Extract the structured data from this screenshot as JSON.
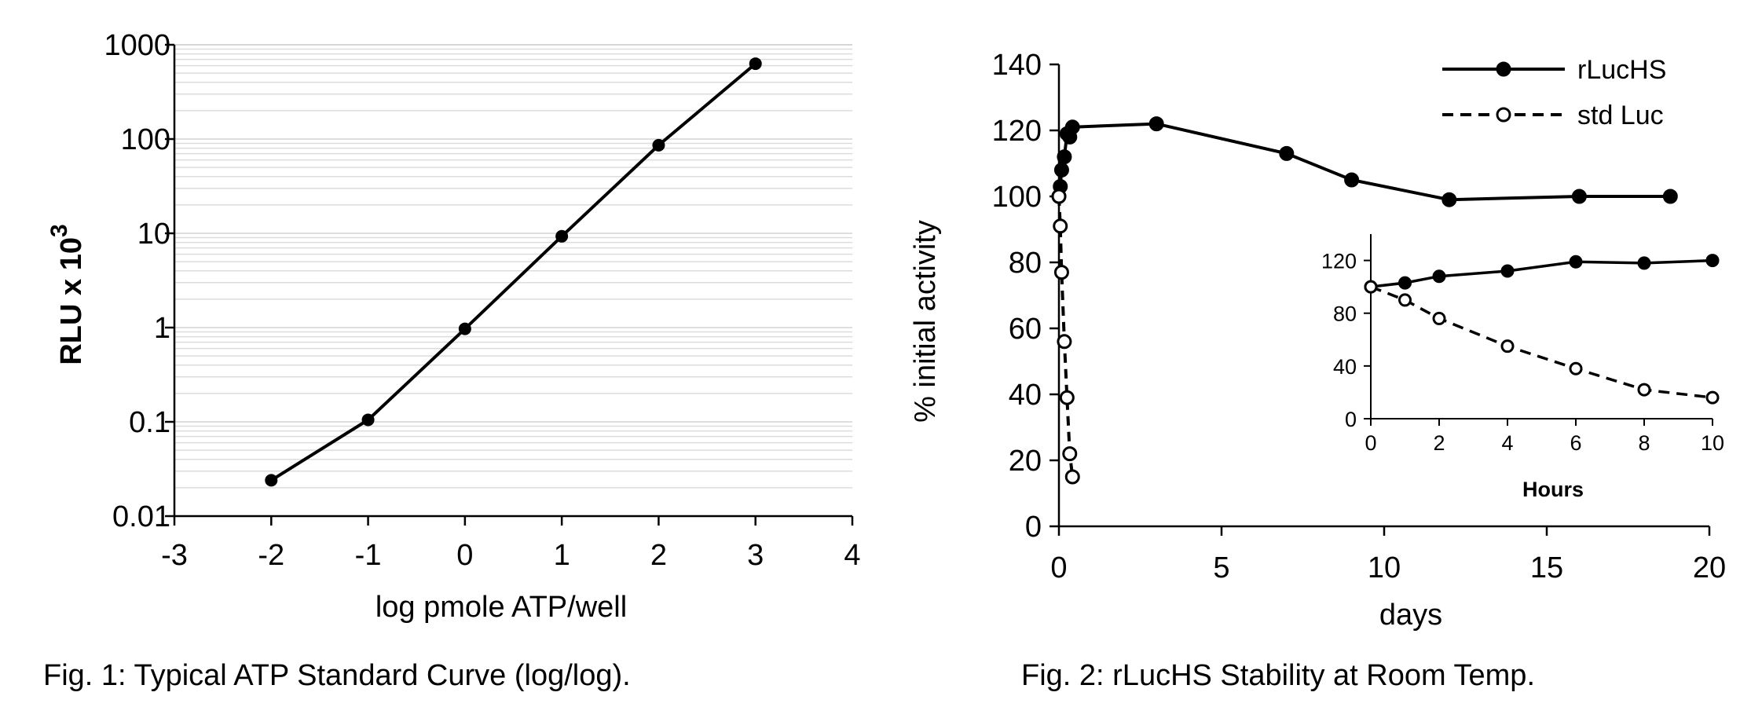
{
  "chart_data": [
    {
      "type": "line",
      "caption": "Fig. 1: Typical ATP Standard Curve (log/log).",
      "xlabel": "log pmole ATP/well",
      "ylabel": "RLU x 10",
      "ylabel_superscript": "3",
      "xlim": [
        -3,
        4
      ],
      "ylim": [
        0.01,
        1000
      ],
      "yscale": "log",
      "grid": "horizontal minor",
      "xticks": [
        "-3",
        "-2",
        "-1",
        "0",
        "1",
        "2",
        "3",
        "4"
      ],
      "yticks": [
        "0.01",
        "0.1",
        "1",
        "10",
        "100",
        "1000"
      ],
      "series": [
        {
          "x": [
            -2,
            -1,
            0,
            1,
            2,
            3
          ],
          "y": [
            0.024,
            0.105,
            0.97,
            9.3,
            86,
            630
          ]
        }
      ]
    },
    {
      "type": "line",
      "caption": "Fig. 2: rLucHS Stability at Room Temp.",
      "xlabel": "days",
      "ylabel": "% initial activity",
      "xlim": [
        0,
        20
      ],
      "ylim": [
        0,
        140
      ],
      "xticks": [
        "0",
        "5",
        "10",
        "15",
        "20"
      ],
      "yticks": [
        "0",
        "20",
        "40",
        "60",
        "80",
        "100",
        "120",
        "140"
      ],
      "legend_position": "top-right",
      "series": [
        {
          "name": "rLucHS",
          "style": "solid-filled",
          "x": [
            0,
            0.042,
            0.083,
            0.167,
            0.25,
            0.333,
            0.417,
            3,
            7,
            9,
            12,
            16,
            18.8
          ],
          "y": [
            100,
            103,
            108,
            112,
            119,
            118,
            121,
            122,
            113,
            105,
            99,
            100,
            100
          ]
        },
        {
          "name": "std Luc",
          "style": "dashed-open",
          "x": [
            0,
            0.042,
            0.083,
            0.167,
            0.25,
            0.333,
            0.417
          ],
          "y": [
            100,
            91,
            77,
            56,
            39,
            22,
            15
          ]
        }
      ],
      "inset": {
        "xlabel": "Hours",
        "xlim": [
          0,
          10
        ],
        "ylim": [
          0,
          140
        ],
        "xticks": [
          "0",
          "2",
          "4",
          "6",
          "8",
          "10"
        ],
        "yticks": [
          "0",
          "40",
          "80",
          "120"
        ],
        "series": [
          {
            "name": "rLucHS",
            "x": [
              0,
              1,
              2,
              4,
              6,
              8,
              10
            ],
            "y": [
              100,
              103,
              108,
              112,
              119,
              118,
              120
            ]
          },
          {
            "name": "std Luc",
            "x": [
              0,
              1,
              2,
              4,
              6,
              8,
              10
            ],
            "y": [
              100,
              90,
              76,
              55,
              38,
              22,
              16
            ]
          }
        ]
      }
    }
  ]
}
